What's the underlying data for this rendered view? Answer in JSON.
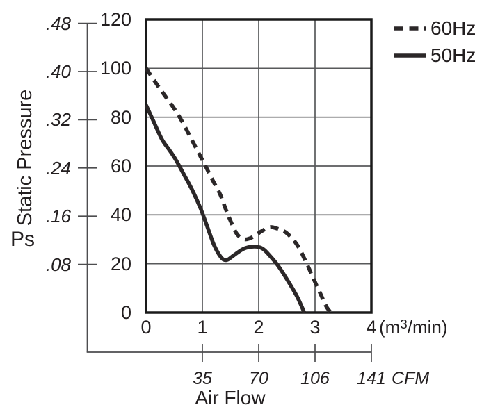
{
  "chart_data": {
    "type": "line",
    "title": "",
    "xlabel": "Air Flow",
    "x_unit": {
      "pre": "(m",
      "sup": "3",
      "post": "/min)"
    },
    "x_ticks": [
      "0",
      "1",
      "2",
      "3",
      "4"
    ],
    "xlim": [
      0,
      4
    ],
    "ylim": [
      0,
      120
    ],
    "grid": true,
    "pa_axis": {
      "ticks": [
        "0",
        "20",
        "40",
        "60",
        "80",
        "100",
        "120"
      ]
    },
    "inh2o_axis": {
      "label_main": "Static Pressure",
      "label_symbol": "Ps",
      "ticks": [
        ".08",
        ".16",
        ".24",
        ".32",
        ".40",
        ".48"
      ]
    },
    "cfm_axis": {
      "ticks": [
        "35",
        "70",
        "106",
        "141"
      ],
      "unit": "CFM"
    },
    "legend": [
      {
        "label": "60Hz",
        "style": "dashed"
      },
      {
        "label": "50Hz",
        "style": "solid"
      }
    ],
    "series": [
      {
        "name": "60Hz",
        "style": "dashed",
        "points": [
          [
            0,
            100
          ],
          [
            0.25,
            91.5
          ],
          [
            0.5,
            83.5
          ],
          [
            0.66,
            77.4
          ],
          [
            0.85,
            69
          ],
          [
            1.02,
            61.6
          ],
          [
            1.19,
            53.9
          ],
          [
            1.32,
            48.2
          ],
          [
            1.42,
            42
          ],
          [
            1.52,
            36.5
          ],
          [
            1.62,
            32
          ],
          [
            1.75,
            30
          ],
          [
            1.9,
            31
          ],
          [
            2.05,
            33.3
          ],
          [
            2.2,
            35
          ],
          [
            2.35,
            34.2
          ],
          [
            2.5,
            32.5
          ],
          [
            2.68,
            27.8
          ],
          [
            2.84,
            20.7
          ],
          [
            2.98,
            13.5
          ],
          [
            3.1,
            7.5
          ],
          [
            3.2,
            2.5
          ],
          [
            3.28,
            0
          ]
        ]
      },
      {
        "name": "50Hz",
        "style": "solid",
        "points": [
          [
            0,
            85
          ],
          [
            0.12,
            79
          ],
          [
            0.28,
            71
          ],
          [
            0.41,
            66.7
          ],
          [
            0.53,
            62.5
          ],
          [
            0.68,
            56.2
          ],
          [
            0.82,
            50.2
          ],
          [
            0.97,
            42.5
          ],
          [
            1.09,
            35
          ],
          [
            1.21,
            27.5
          ],
          [
            1.33,
            22.7
          ],
          [
            1.43,
            21.5
          ],
          [
            1.56,
            23.5
          ],
          [
            1.73,
            26.1
          ],
          [
            1.9,
            27
          ],
          [
            2.06,
            26.3
          ],
          [
            2.2,
            23.2
          ],
          [
            2.35,
            19
          ],
          [
            2.51,
            13.3
          ],
          [
            2.68,
            6.6
          ],
          [
            2.81,
            0
          ]
        ]
      }
    ],
    "colors": {
      "curve": "#2b2728",
      "grid": "#58595b",
      "axis": "#4d4d4f",
      "border": "#1a1a1a",
      "text": "#231f20"
    }
  }
}
